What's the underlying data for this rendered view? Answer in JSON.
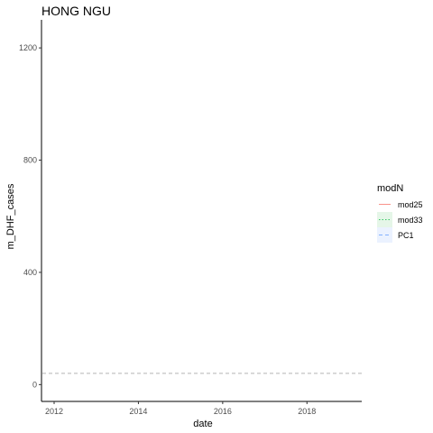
{
  "chart_data": {
    "type": "line",
    "title": "HONG NGU",
    "xlabel": "date",
    "ylabel": "m_DHF_cases",
    "xlim": [
      2011.7,
      2019.3
    ],
    "ylim": [
      -60,
      1300
    ],
    "x_ticks": [
      2012,
      2014,
      2016,
      2018
    ],
    "x_tick_labels": [
      "2012",
      "2014",
      "2016",
      "2018"
    ],
    "y_ticks": [
      0,
      400,
      800,
      1200
    ],
    "y_tick_labels": [
      "0",
      "400",
      "800",
      "1200"
    ],
    "grid": false,
    "legend": {
      "title": "modN",
      "position": "right",
      "entries": [
        {
          "label": "mod25",
          "color": "#F8766D",
          "dash": "solid",
          "fill": "#ffffff"
        },
        {
          "label": "mod33",
          "color": "#00BA38",
          "dash": "dotted",
          "fill": "#e5f6e8"
        },
        {
          "label": "PC1",
          "color": "#619CFF",
          "dash": "dashed",
          "fill": "#ebf2ff"
        }
      ]
    },
    "reference_lines": [
      {
        "y": 40,
        "color": "#b3b3b3",
        "dash": "dashed"
      }
    ],
    "series": []
  }
}
